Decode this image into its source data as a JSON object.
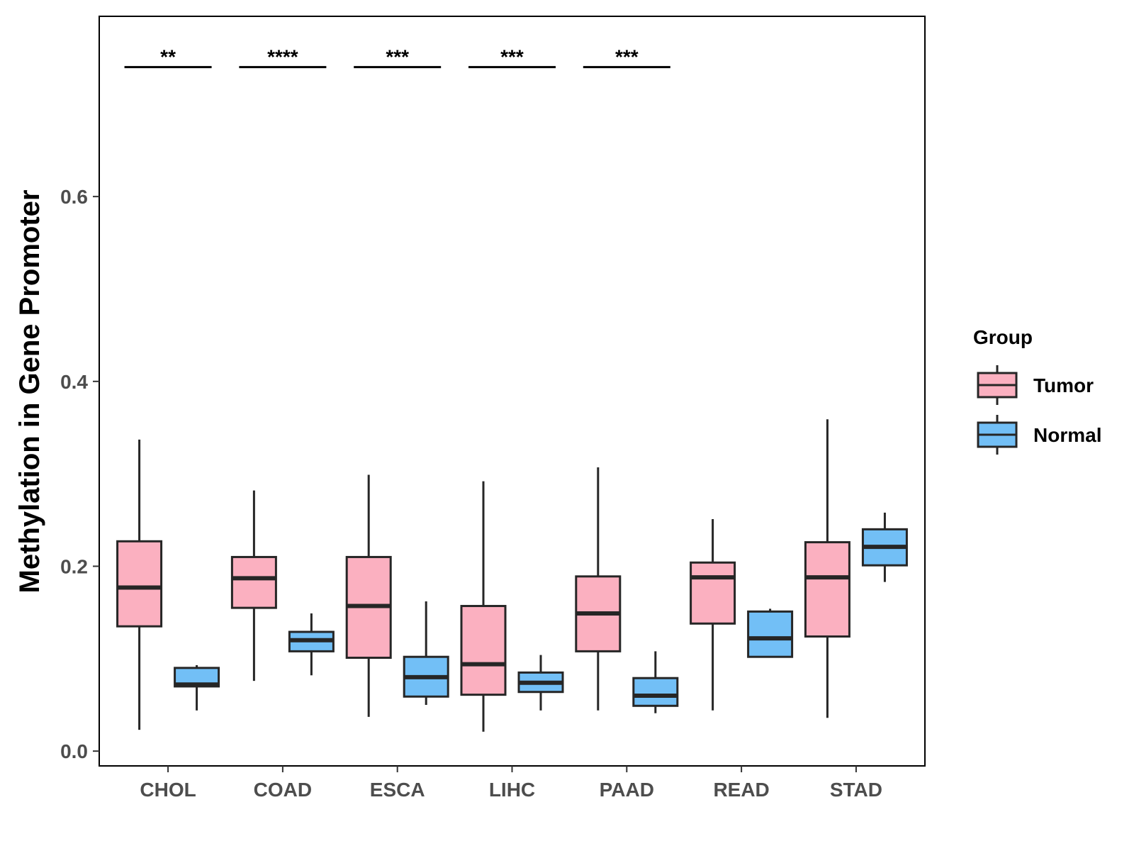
{
  "chart_data": {
    "type": "boxplot",
    "title": "",
    "xlabel": "",
    "ylabel": "Methylation in Gene Promoter",
    "ylim": [
      -0.016,
      0.795
    ],
    "yticks": [
      0.0,
      0.2,
      0.4,
      0.6
    ],
    "ytick_labels": [
      "0.0",
      "0.2",
      "0.4",
      "0.6"
    ],
    "categories": [
      "CHOL",
      "COAD",
      "ESCA",
      "LIHC",
      "PAAD",
      "READ",
      "STAD"
    ],
    "legend": {
      "title": "Group",
      "position": "right",
      "entries": [
        {
          "name": "Tumor",
          "color": "#fbb0c0"
        },
        {
          "name": "Normal",
          "color": "#72bff6"
        }
      ]
    },
    "series": [
      {
        "name": "Tumor",
        "color": "#fbb0c0",
        "boxes": [
          {
            "category": "CHOL",
            "min": 0.023,
            "q1": 0.135,
            "median": 0.177,
            "q3": 0.227,
            "max": 0.337
          },
          {
            "category": "COAD",
            "min": 0.076,
            "q1": 0.155,
            "median": 0.187,
            "q3": 0.21,
            "max": 0.282
          },
          {
            "category": "ESCA",
            "min": 0.037,
            "q1": 0.101,
            "median": 0.157,
            "q3": 0.21,
            "max": 0.299
          },
          {
            "category": "LIHC",
            "min": 0.021,
            "q1": 0.061,
            "median": 0.094,
            "q3": 0.157,
            "max": 0.292
          },
          {
            "category": "PAAD",
            "min": 0.044,
            "q1": 0.108,
            "median": 0.149,
            "q3": 0.189,
            "max": 0.307
          },
          {
            "category": "READ",
            "min": 0.044,
            "q1": 0.138,
            "median": 0.188,
            "q3": 0.204,
            "max": 0.251
          },
          {
            "category": "STAD",
            "min": 0.036,
            "q1": 0.124,
            "median": 0.188,
            "q3": 0.226,
            "max": 0.359
          }
        ]
      },
      {
        "name": "Normal",
        "color": "#72bff6",
        "boxes": [
          {
            "category": "CHOL",
            "min": 0.044,
            "q1": 0.07,
            "median": 0.072,
            "q3": 0.09,
            "max": 0.093
          },
          {
            "category": "COAD",
            "min": 0.082,
            "q1": 0.108,
            "median": 0.12,
            "q3": 0.129,
            "max": 0.149
          },
          {
            "category": "ESCA",
            "min": 0.05,
            "q1": 0.059,
            "median": 0.08,
            "q3": 0.102,
            "max": 0.162
          },
          {
            "category": "LIHC",
            "min": 0.044,
            "q1": 0.064,
            "median": 0.074,
            "q3": 0.085,
            "max": 0.104
          },
          {
            "category": "PAAD",
            "min": 0.041,
            "q1": 0.049,
            "median": 0.06,
            "q3": 0.079,
            "max": 0.108
          },
          {
            "category": "READ",
            "min": 0.102,
            "q1": 0.102,
            "median": 0.122,
            "q3": 0.151,
            "max": 0.154
          },
          {
            "category": "STAD",
            "min": 0.183,
            "q1": 0.201,
            "median": 0.221,
            "q3": 0.24,
            "max": 0.258
          }
        ]
      }
    ],
    "annotations": [
      {
        "category": "CHOL",
        "label": "**",
        "y": 0.74
      },
      {
        "category": "COAD",
        "label": "****",
        "y": 0.74
      },
      {
        "category": "ESCA",
        "label": "***",
        "y": 0.74
      },
      {
        "category": "LIHC",
        "label": "***",
        "y": 0.74
      },
      {
        "category": "PAAD",
        "label": "***",
        "y": 0.74
      }
    ]
  }
}
